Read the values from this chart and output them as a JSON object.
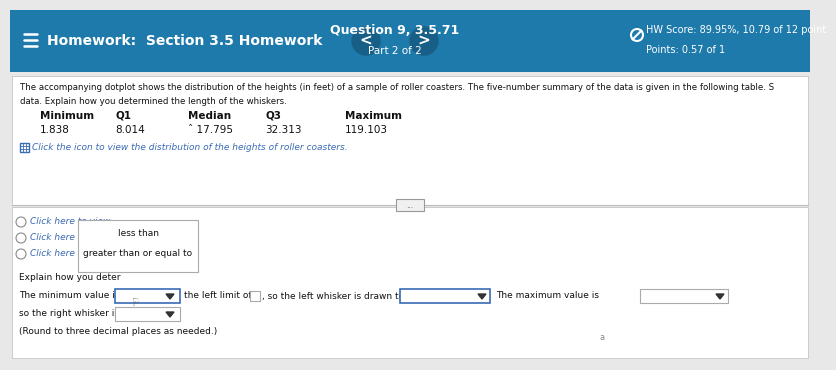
{
  "header_bg": "#1e7aab",
  "header_text_color": "#ffffff",
  "header_left": "Homework:  Section 3.5 Homework",
  "header_center_title": "Question 9, 3.5.71",
  "header_center_sub": "Part 2 of 2",
  "header_right_line1": "HW Score: 89.95%, 10.79 of 12 point",
  "header_right_line2": "Points: 0.57 of 1",
  "body_bg": "#e8e8e8",
  "body_text_color": "#111111",
  "body_line1": "The accompanying dotplot shows the distribution of the heights (in feet) of a sample of roller coasters. The five-number summary of the data is given in the following table. S",
  "body_line2": "data. Explain how you determined the length of the whiskers.",
  "table_headers": [
    "Minimum",
    "Q1",
    "Median",
    "Q3",
    "Maximum"
  ],
  "table_values": [
    "1.838",
    "8.014",
    "ˆ 17.795",
    "32.313",
    "119.103"
  ],
  "icon_line": "Click the icon to view the distribution of the heights of roller coasters.",
  "separator_text": "...",
  "radio_options": [
    "Click here to view",
    "Click here to view",
    "Click here to view"
  ],
  "dropdown_option1": "less than",
  "dropdown_option2": "greater than or equal to",
  "explain_label": "Explain how you deter",
  "bottom_line1_prefix": "The minimum value is",
  "bottom_line1_middle": "the left limit of",
  "bottom_line1_suffix": ", so the left whisker is drawn to",
  "bottom_label_right": "The maximum value is",
  "bottom_line2_prefix": "so the right whisker is drawn to",
  "bottom_note": "(Round to three decimal places as needed.)"
}
